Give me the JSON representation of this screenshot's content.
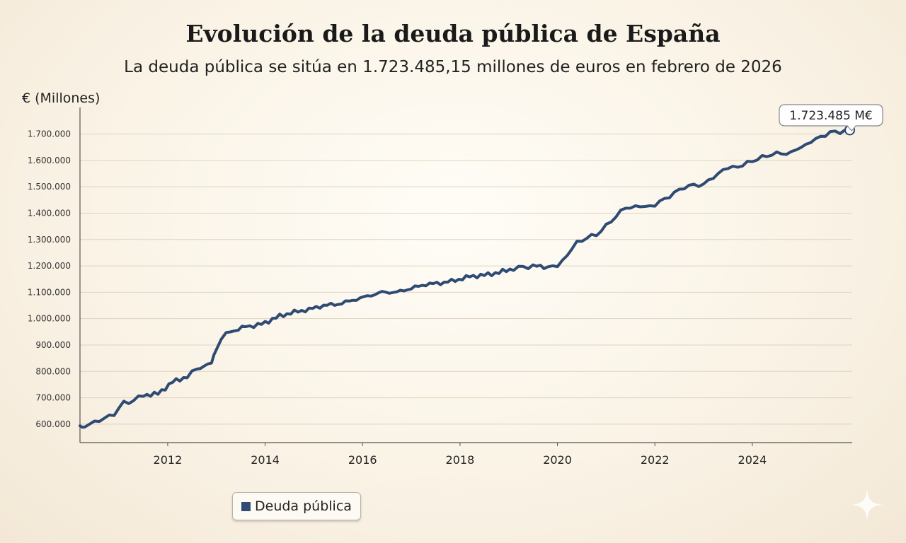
{
  "colors": {
    "series": "#2f4a73",
    "grid": "#ddd3c3",
    "axis": "#555555",
    "callout_border": "#888888"
  },
  "chart_data": {
    "type": "line",
    "title": "Evolución de la deuda pública de España",
    "subtitle": "La deuda pública se sitúa en 1.723.485,15 millones de euros en febrero de 2026",
    "ylabel": "€ (Millones)",
    "xlabel": "",
    "y_ticks": [
      "600.000",
      "700.000",
      "800.000",
      "900.000",
      "1.000.000",
      "1.100.000",
      "1.200.000",
      "1.300.000",
      "1.400.000",
      "1.500.000",
      "1.600.000",
      "1.700.000"
    ],
    "y_tick_values": [
      600000,
      700000,
      800000,
      900000,
      1000000,
      1100000,
      1200000,
      1300000,
      1400000,
      1500000,
      1600000,
      1700000
    ],
    "x_ticks": [
      "2012",
      "2014",
      "2016",
      "2018",
      "2020",
      "2022",
      "2024"
    ],
    "x_tick_values": [
      2012,
      2014,
      2016,
      2018,
      2020,
      2022,
      2024
    ],
    "xlim": [
      2010.2,
      2026.05
    ],
    "ylim": [
      530000,
      1790000
    ],
    "grid": "horizontal",
    "legend": {
      "position": "bottom-left",
      "label": "Deuda pública"
    },
    "series": [
      {
        "name": "Deuda pública",
        "x": [
          2010.2,
          2010.3,
          2010.5,
          2010.7,
          2010.9,
          2011.1,
          2011.3,
          2011.5,
          2011.8,
          2012.1,
          2012.4,
          2012.6,
          2012.9,
          2013.0,
          2013.2,
          2013.45,
          2013.6,
          2013.85,
          2014.0,
          2014.3,
          2014.6,
          2014.9,
          2015.2,
          2015.5,
          2015.8,
          2016.1,
          2016.4,
          2016.7,
          2017.0,
          2017.3,
          2017.6,
          2017.9,
          2018.2,
          2018.5,
          2018.8,
          2019.1,
          2019.3,
          2019.5,
          2019.8,
          2020.0,
          2020.2,
          2020.4,
          2020.6,
          2020.8,
          2021.0,
          2021.2,
          2021.4,
          2021.6,
          2021.8,
          2022.0,
          2022.2,
          2022.4,
          2022.6,
          2022.8,
          2023.0,
          2023.2,
          2023.4,
          2023.6,
          2023.8,
          2024.0,
          2024.2,
          2024.4,
          2024.6,
          2024.8,
          2025.0,
          2025.2,
          2025.4,
          2025.6,
          2025.8,
          2026.0
        ],
        "values": [
          592000,
          590000,
          610000,
          620000,
          640000,
          680000,
          690000,
          710000,
          715000,
          760000,
          780000,
          810000,
          830000,
          890000,
          945000,
          960000,
          970000,
          975000,
          985000,
          1010000,
          1025000,
          1035000,
          1050000,
          1055000,
          1070000,
          1085000,
          1100000,
          1100000,
          1115000,
          1130000,
          1135000,
          1145000,
          1160000,
          1165000,
          1175000,
          1190000,
          1195000,
          1200000,
          1195000,
          1200000,
          1240000,
          1290000,
          1305000,
          1320000,
          1350000,
          1390000,
          1420000,
          1425000,
          1425000,
          1430000,
          1455000,
          1475000,
          1500000,
          1505000,
          1510000,
          1535000,
          1565000,
          1575000,
          1580000,
          1600000,
          1610000,
          1625000,
          1625000,
          1630000,
          1650000,
          1670000,
          1690000,
          1705000,
          1710000,
          1715000
        ]
      }
    ],
    "annotations": [
      {
        "label": "1.723.485 M€",
        "x": 2026.0,
        "y": 1715000
      }
    ]
  }
}
